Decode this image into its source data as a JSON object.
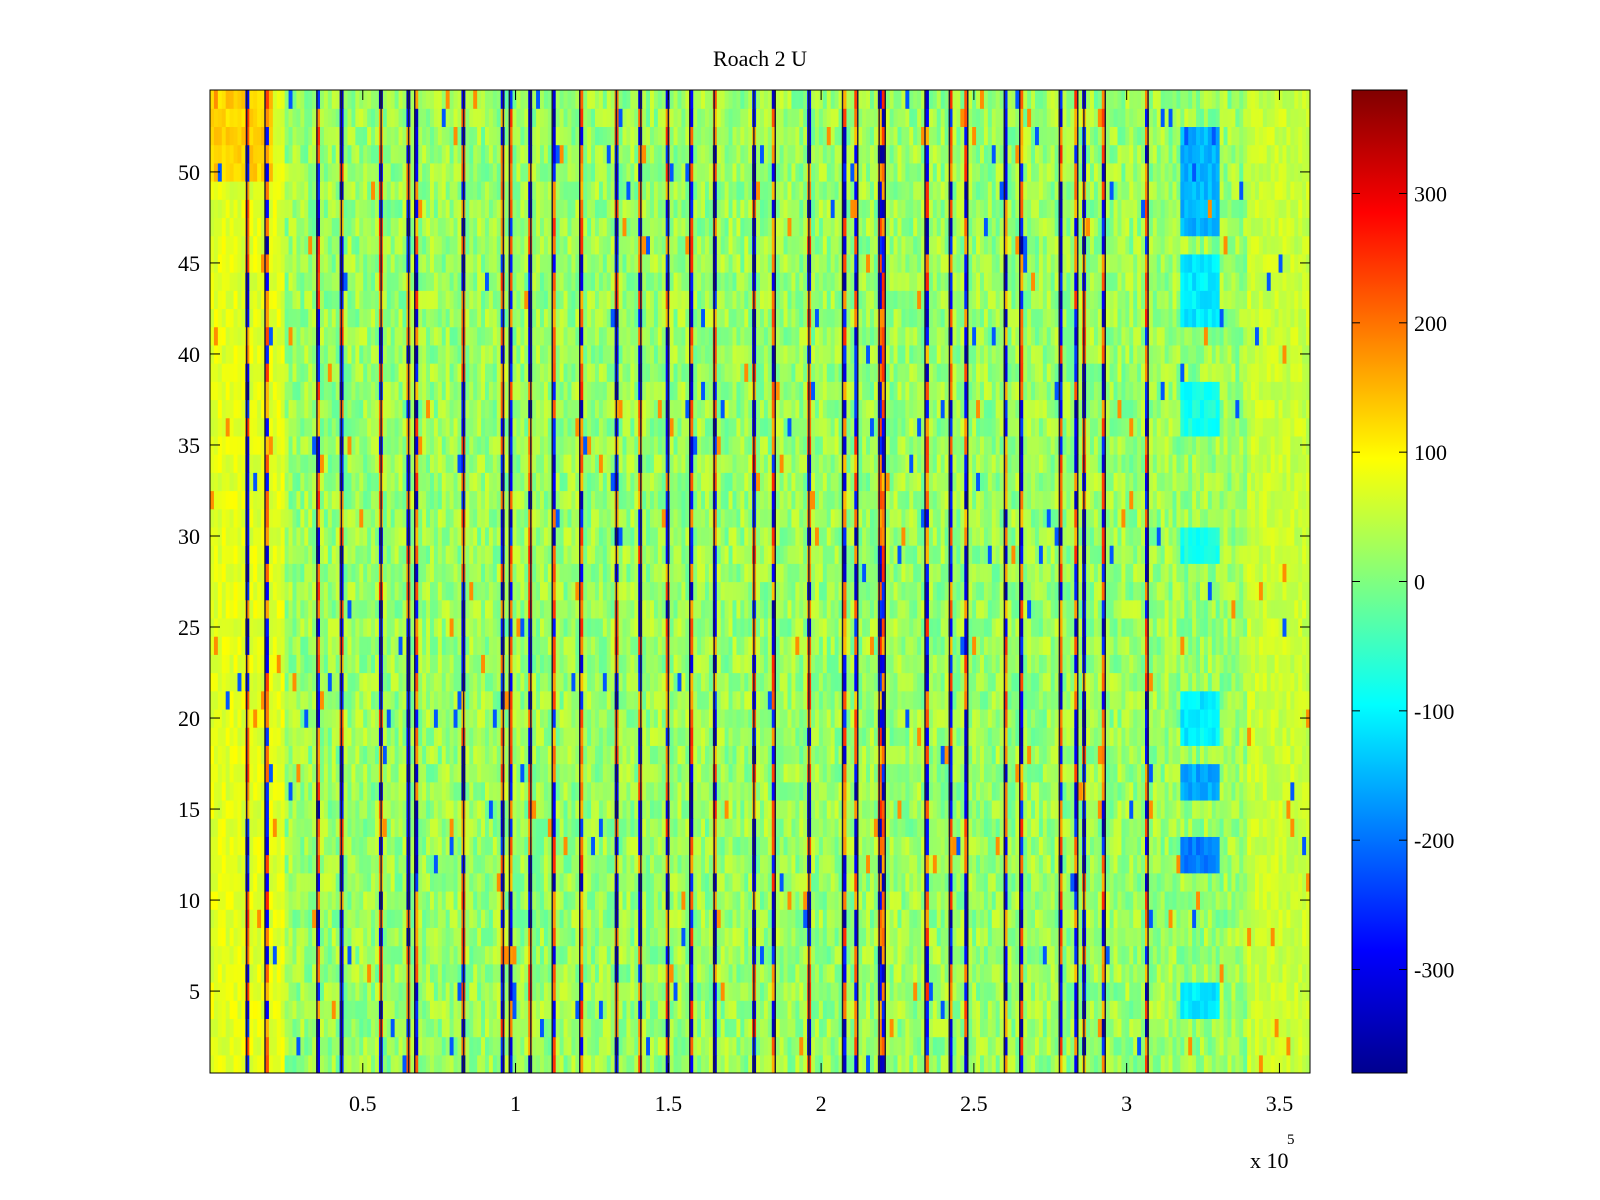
{
  "chart_data": {
    "type": "heatmap",
    "title": "Roach 2 U",
    "xlabel": "",
    "ylabel": "",
    "x_exponent_label": "x 10",
    "x_exponent_power": "5",
    "x_range": [
      0,
      360000
    ],
    "y_range": [
      0.5,
      54.5
    ],
    "rows": 54,
    "x_ticks": [
      {
        "value": 50000,
        "label": "0.5"
      },
      {
        "value": 100000,
        "label": "1"
      },
      {
        "value": 150000,
        "label": "1.5"
      },
      {
        "value": 200000,
        "label": "2"
      },
      {
        "value": 250000,
        "label": "2.5"
      },
      {
        "value": 300000,
        "label": "3"
      },
      {
        "value": 350000,
        "label": "3.5"
      }
    ],
    "y_ticks": [
      {
        "value": 5,
        "label": "5"
      },
      {
        "value": 10,
        "label": "10"
      },
      {
        "value": 15,
        "label": "15"
      },
      {
        "value": 20,
        "label": "20"
      },
      {
        "value": 25,
        "label": "25"
      },
      {
        "value": 30,
        "label": "30"
      },
      {
        "value": 35,
        "label": "35"
      },
      {
        "value": 40,
        "label": "40"
      },
      {
        "value": 45,
        "label": "45"
      },
      {
        "value": 50,
        "label": "50"
      }
    ],
    "colorbar": {
      "colormap": "jet",
      "range": [
        -380,
        380
      ],
      "ticks": [
        {
          "value": 300,
          "label": "300"
        },
        {
          "value": 200,
          "label": "200"
        },
        {
          "value": 100,
          "label": "100"
        },
        {
          "value": 0,
          "label": "0"
        },
        {
          "value": -100,
          "label": "-100"
        },
        {
          "value": -200,
          "label": "-200"
        },
        {
          "value": -300,
          "label": "-300"
        }
      ]
    },
    "baseline_value": 20,
    "features": [
      {
        "description_of_region": "warm band",
        "x_range": [
          0,
          25000
        ],
        "y_range": [
          0.5,
          54.5
        ],
        "value": 75
      },
      {
        "description_of_region": "warm top rows",
        "x_range": [
          0,
          20000
        ],
        "y_range": [
          50,
          54.5
        ],
        "value": 130
      },
      {
        "description_of_region": "warm right edge",
        "x_range": [
          340000,
          360000
        ],
        "y_range": [
          0.5,
          54.5
        ],
        "value": 55
      },
      {
        "description_of_region": "cool block",
        "x_range": [
          318000,
          330000
        ],
        "y_range": [
          47,
          52
        ],
        "value": -150
      },
      {
        "description_of_region": "cool block",
        "x_range": [
          318000,
          330000
        ],
        "y_range": [
          41.5,
          45
        ],
        "value": -110
      },
      {
        "description_of_region": "cool block",
        "x_range": [
          318000,
          330000
        ],
        "y_range": [
          36,
          38
        ],
        "value": -80
      },
      {
        "description_of_region": "cool block",
        "x_range": [
          318000,
          330000
        ],
        "y_range": [
          28.5,
          30
        ],
        "value": -80
      },
      {
        "description_of_region": "cool block",
        "x_range": [
          318000,
          330000
        ],
        "y_range": [
          18.5,
          21.5
        ],
        "value": -105
      },
      {
        "description_of_region": "cool block",
        "x_range": [
          318000,
          330000
        ],
        "y_range": [
          16,
          17.5
        ],
        "value": -160
      },
      {
        "description_of_region": "cool block",
        "x_range": [
          318000,
          330000
        ],
        "y_range": [
          12,
          13.5
        ],
        "value": -190
      },
      {
        "description_of_region": "cool block",
        "x_range": [
          318000,
          330000
        ],
        "y_range": [
          4,
          5.5
        ],
        "value": -110
      }
    ],
    "stripe_columns_x": [
      12000,
      18000,
      35000,
      43000,
      56000,
      65000,
      67000,
      83000,
      96000,
      98000,
      105000,
      112000,
      121000,
      133000,
      141000,
      150000,
      157000,
      165000,
      178000,
      185000,
      196000,
      207000,
      212000,
      219000,
      221000,
      234000,
      242000,
      248000,
      260000,
      265000,
      278000,
      284000,
      286000,
      293000,
      307000
    ]
  }
}
